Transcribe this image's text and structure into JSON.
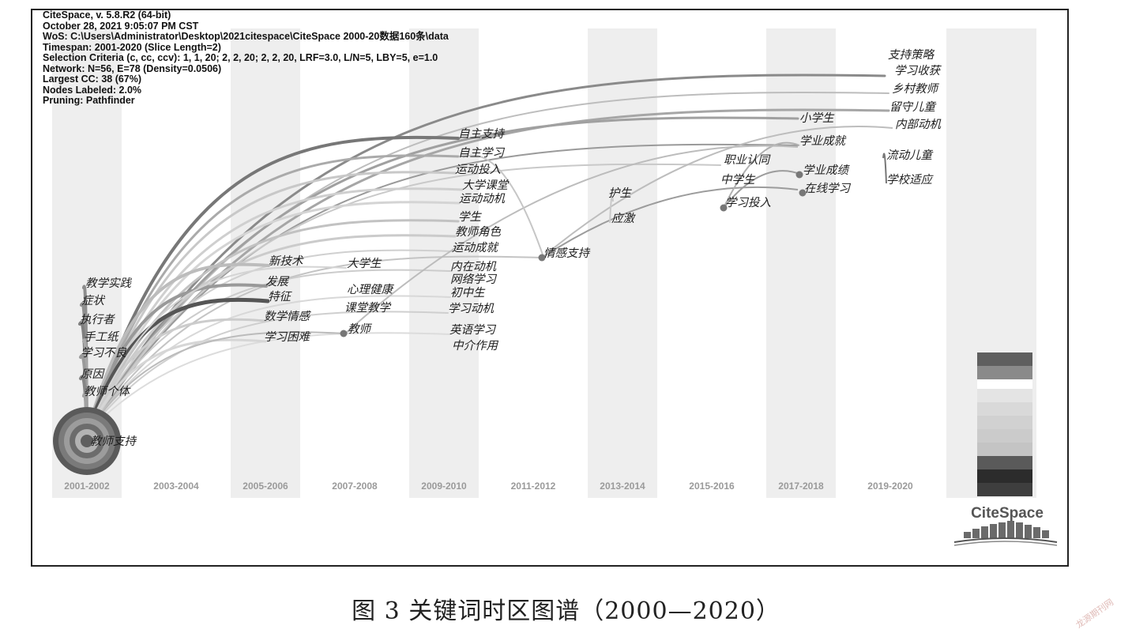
{
  "info_lines": [
    "CiteSpace, v. 5.8.R2 (64-bit)",
    "October 28, 2021 9:05:07 PM CST",
    "WoS: C:\\Users\\Administrator\\Desktop\\2021citespace\\CiteSpace 2000-20数据160条\\data",
    "Timespan: 2001-2020 (Slice Length=2)",
    "Selection Criteria (c, cc, ccv): 1, 1, 20; 2, 2, 20; 2, 2, 20, LRF=3.0, L/N=5, LBY=5, e=1.0",
    "Network: N=56, E=78 (Density=0.0506)",
    "Largest CC: 38 (67%)",
    "Nodes Labeled: 2.0%",
    "Pruning: Pathfinder"
  ],
  "slices": [
    "2001-2002",
    "2003-2004",
    "2005-2006",
    "2007-2008",
    "2009-2010",
    "2011-2012",
    "2013-2014",
    "2015-2016",
    "2017-2018",
    "2019-2020"
  ],
  "keywords": [
    {
      "text": "教师支持",
      "slice": 0
    },
    {
      "text": "教学实践",
      "slice": 0
    },
    {
      "text": "症状",
      "slice": 0
    },
    {
      "text": "执行者",
      "slice": 0
    },
    {
      "text": "手工纸",
      "slice": 0
    },
    {
      "text": "学习不良",
      "slice": 0
    },
    {
      "text": "原因",
      "slice": 0
    },
    {
      "text": "教师个体",
      "slice": 0
    },
    {
      "text": "新技术",
      "slice": 2
    },
    {
      "text": "发展",
      "slice": 2
    },
    {
      "text": "特征",
      "slice": 2
    },
    {
      "text": "数学情感",
      "slice": 2
    },
    {
      "text": "学习困难",
      "slice": 2
    },
    {
      "text": "大学生",
      "slice": 3
    },
    {
      "text": "心理健康",
      "slice": 3
    },
    {
      "text": "课堂教学",
      "slice": 3
    },
    {
      "text": "教师",
      "slice": 3
    },
    {
      "text": "自主支持",
      "slice": 4
    },
    {
      "text": "自主学习",
      "slice": 4
    },
    {
      "text": "运动投入",
      "slice": 4
    },
    {
      "text": "大学课堂",
      "slice": 4
    },
    {
      "text": "运动动机",
      "slice": 4
    },
    {
      "text": "学生",
      "slice": 4
    },
    {
      "text": "教师角色",
      "slice": 4
    },
    {
      "text": "运动成就",
      "slice": 4
    },
    {
      "text": "内在动机",
      "slice": 4
    },
    {
      "text": "网络学习",
      "slice": 4
    },
    {
      "text": "初中生",
      "slice": 4
    },
    {
      "text": "学习动机",
      "slice": 4
    },
    {
      "text": "英语学习",
      "slice": 4
    },
    {
      "text": "中介作用",
      "slice": 4
    },
    {
      "text": "情感支持",
      "slice": 5
    },
    {
      "text": "护生",
      "slice": 6
    },
    {
      "text": "应激",
      "slice": 6
    },
    {
      "text": "职业认同",
      "slice": 7
    },
    {
      "text": "中学生",
      "slice": 7
    },
    {
      "text": "学习投入",
      "slice": 7
    },
    {
      "text": "小学生",
      "slice": 8
    },
    {
      "text": "学业成就",
      "slice": 8
    },
    {
      "text": "学业成绩",
      "slice": 8
    },
    {
      "text": "在线学习",
      "slice": 8
    },
    {
      "text": "支持策略",
      "slice": 9
    },
    {
      "text": "学习收获",
      "slice": 9
    },
    {
      "text": "乡村教师",
      "slice": 9
    },
    {
      "text": "留守儿童",
      "slice": 9
    },
    {
      "text": "内部动机",
      "slice": 9
    },
    {
      "text": "流动儿童",
      "slice": 9
    },
    {
      "text": "学校适应",
      "slice": 9
    }
  ],
  "legend_colors": [
    "#5f5f5f",
    "#8a8a8a",
    "#ffffff",
    "#e4e4e4",
    "#d9d9d9",
    "#d1d1d1",
    "#cbcbcb",
    "#c4c4c4",
    "#5a5a5a",
    "#2c2c2c",
    "#3e3e3e"
  ],
  "logo_text": "CiteSpace",
  "caption": "图 3   关键词时区图谱（2000—2020）",
  "watermark": "龙源期刊网",
  "colors": {
    "background": "#ffffff",
    "stripe": "#eeeeee",
    "link_dark": "#707070",
    "link_light": "#d2d2d2",
    "node": "#777777"
  }
}
